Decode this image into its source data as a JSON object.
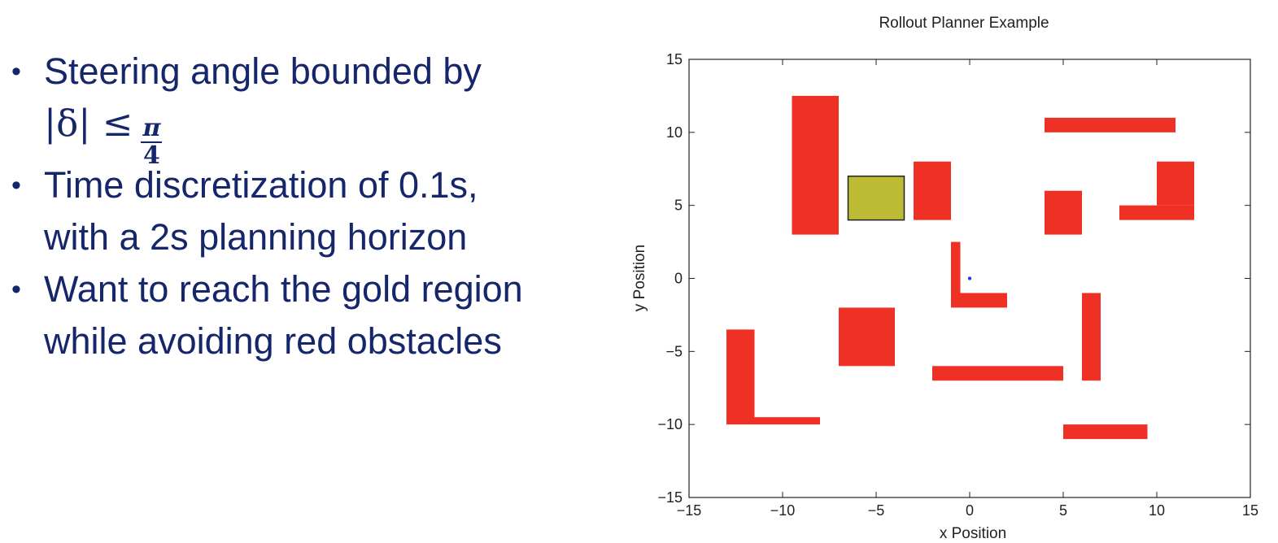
{
  "slide": {
    "bullets": [
      {
        "lines": [
          "Steering angle bounded by"
        ],
        "math": {
          "left": "|δ| ≤",
          "delta": "δ",
          "numerator": "π",
          "denominator": "4"
        }
      },
      {
        "lines": [
          "Time discretization of 0.1s,",
          "with a 2s planning horizon"
        ]
      },
      {
        "lines": [
          "Want to reach the gold region",
          "while avoiding red obstacles"
        ]
      }
    ],
    "bullet_glyph": "•"
  },
  "chart_data": {
    "type": "scatter",
    "title": "Rollout Planner Example",
    "xlabel": "x Position",
    "ylabel": "y Position",
    "xlim": [
      -15,
      15
    ],
    "ylim": [
      -15,
      15
    ],
    "xticks": [
      -15,
      -10,
      -5,
      0,
      5,
      10,
      15
    ],
    "yticks": [
      -15,
      -10,
      -5,
      0,
      5,
      10,
      15
    ],
    "xtick_labels": [
      "−15",
      "−10",
      "−5",
      "0",
      "5",
      "10",
      "15"
    ],
    "ytick_labels": [
      "−15",
      "−10",
      "−5",
      "0",
      "5",
      "10",
      "15"
    ],
    "grid": false,
    "colors": {
      "obstacle": "#ee3124",
      "goal": "#bdbb33",
      "goal_edge": "#222222",
      "point": "#1f3cff",
      "text": "#222222"
    },
    "goal_region": {
      "x": [
        -6.5,
        -3.5
      ],
      "y": [
        4,
        7
      ]
    },
    "obstacles": [
      {
        "x": [
          -9.5,
          -7
        ],
        "y": [
          3,
          12.5
        ]
      },
      {
        "x": [
          -3,
          -1
        ],
        "y": [
          4,
          8
        ]
      },
      {
        "x": [
          4,
          11
        ],
        "y": [
          10,
          11
        ]
      },
      {
        "x": [
          4,
          6
        ],
        "y": [
          3,
          6
        ]
      },
      {
        "x": [
          8,
          12
        ],
        "y": [
          4,
          5
        ]
      },
      {
        "x": [
          10,
          12
        ],
        "y": [
          5,
          8
        ]
      },
      {
        "x": [
          -1,
          -0.5
        ],
        "y": [
          -2,
          2.5
        ]
      },
      {
        "x": [
          -0.5,
          2
        ],
        "y": [
          -2,
          -1
        ]
      },
      {
        "x": [
          -7,
          -4
        ],
        "y": [
          -6,
          -2
        ]
      },
      {
        "x": [
          -2,
          5
        ],
        "y": [
          -7,
          -6
        ]
      },
      {
        "x": [
          6,
          7
        ],
        "y": [
          -7,
          -1
        ]
      },
      {
        "x": [
          -13,
          -11.5
        ],
        "y": [
          -10,
          -3.5
        ]
      },
      {
        "x": [
          -11.5,
          -8
        ],
        "y": [
          -10,
          -9.5
        ]
      },
      {
        "x": [
          5,
          9.5
        ],
        "y": [
          -11,
          -10
        ]
      }
    ],
    "points": [
      {
        "x": 0,
        "y": 0
      }
    ]
  }
}
